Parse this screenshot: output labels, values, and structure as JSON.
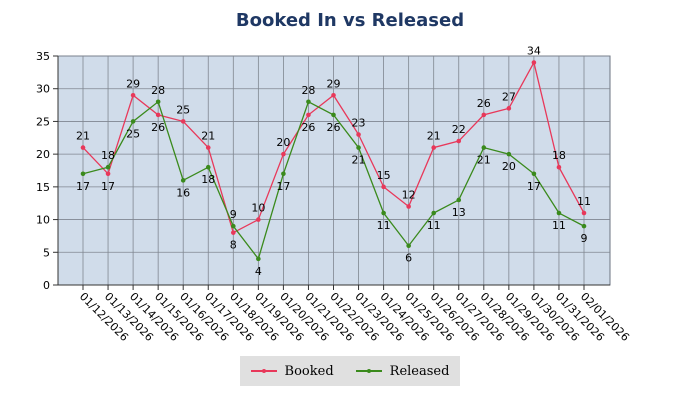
{
  "chart_data": {
    "type": "line",
    "title": "Booked In vs Released",
    "xlabel": "",
    "ylabel": "",
    "ylim": [
      0,
      35
    ],
    "y_ticks": [
      "0",
      "5",
      "10",
      "15",
      "20",
      "25",
      "30",
      "35"
    ],
    "grid": true,
    "legend_position": "bottom",
    "categories": [
      "01/12/2026",
      "01/13/2026",
      "01/14/2026",
      "01/15/2026",
      "01/16/2026",
      "01/17/2026",
      "01/18/2026",
      "01/19/2026",
      "01/20/2026",
      "01/21/2026",
      "01/22/2026",
      "01/23/2026",
      "01/24/2026",
      "01/25/2026",
      "01/26/2026",
      "01/27/2026",
      "01/28/2026",
      "01/29/2026",
      "01/30/2026",
      "01/31/2026",
      "02/01/2026"
    ],
    "series": [
      {
        "name": "Booked",
        "color": "#e8385a",
        "values": [
          21,
          17,
          29,
          26,
          25,
          21,
          8,
          10,
          20,
          26,
          29,
          23,
          15,
          12,
          21,
          22,
          26,
          27,
          34,
          18,
          11
        ]
      },
      {
        "name": "Released",
        "color": "#3a8a1c",
        "values": [
          17,
          18,
          25,
          28,
          16,
          18,
          9,
          4,
          17,
          28,
          26,
          21,
          11,
          6,
          11,
          13,
          21,
          20,
          17,
          11,
          9
        ]
      }
    ],
    "plot_background": "#d0dcea",
    "grid_color": "#7f8690"
  }
}
